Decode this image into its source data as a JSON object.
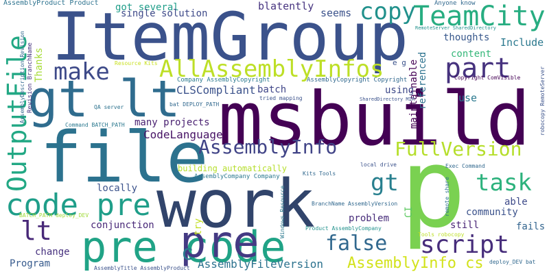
{
  "words": [
    {
      "text": "ItemGroup",
      "color": "#3b528b"
    },
    {
      "text": "msbuild",
      "color": "#440154"
    },
    {
      "text": "file",
      "color": "#2c728e"
    },
    {
      "text": "work",
      "color": "#31446b"
    },
    {
      "text": "p",
      "color": "#7ad151"
    },
    {
      "text": "gt lt",
      "color": "#2f6c8e"
    },
    {
      "text": "pre code",
      "color": "#20a386"
    },
    {
      "text": "pre",
      "color": "#443a83"
    },
    {
      "text": "code pre",
      "color": "#1f9e89"
    },
    {
      "text": "OutputFile",
      "color": "#22a884"
    },
    {
      "text": "AllAssemblyInfos",
      "color": "#bddf26"
    },
    {
      "text": "TeamCity",
      "color": "#27ad81"
    },
    {
      "text": "make",
      "color": "#3e4a89"
    },
    {
      "text": "part",
      "color": "#46327e"
    },
    {
      "text": "copy",
      "color": "#21918c"
    },
    {
      "text": "AssemblyInfo",
      "color": "#414487"
    },
    {
      "text": "FullVersion",
      "color": "#b5de2b"
    },
    {
      "text": "lt",
      "color": "#482878"
    },
    {
      "text": "task",
      "color": "#2db27d"
    },
    {
      "text": "script",
      "color": "#472d7b"
    },
    {
      "text": "false",
      "color": "#31688e"
    },
    {
      "text": "gt",
      "color": "#277f8e"
    },
    {
      "text": "c",
      "color": "#2a788e"
    },
    {
      "text": "AssemblyInfo cs",
      "color": "#d2e21b"
    },
    {
      "text": "AssemblyFileVersion",
      "color": "#2c728e"
    },
    {
      "text": "CodeLanguage",
      "color": "#471365"
    },
    {
      "text": "CLSCompliant",
      "color": "#3b528b"
    },
    {
      "text": "Include",
      "color": "#2a788e"
    },
    {
      "text": "blatently",
      "color": "#46337f"
    },
    {
      "text": "got several",
      "color": "#1f9e89"
    },
    {
      "text": "single solution",
      "color": "#3e4a89"
    },
    {
      "text": "seems",
      "color": "#3b528b"
    },
    {
      "text": "thoughts",
      "color": "#38588c"
    },
    {
      "text": "content",
      "color": "#35b779"
    },
    {
      "text": "maintainable",
      "color": "#440154"
    },
    {
      "text": "referenced",
      "color": "#2c728e"
    },
    {
      "text": "use",
      "color": "#2a788e"
    },
    {
      "text": "batch",
      "color": "#404688"
    },
    {
      "text": "using",
      "color": "#3e4989"
    },
    {
      "text": "many projects",
      "color": "#481f70"
    },
    {
      "text": "building automatically",
      "color": "#b5de2b"
    },
    {
      "text": "locally",
      "color": "#3b528b"
    },
    {
      "text": "conjunction",
      "color": "#482878"
    },
    {
      "text": "problem",
      "color": "#472c7a"
    },
    {
      "text": "community",
      "color": "#3b528b"
    },
    {
      "text": "able",
      "color": "#3e4a89"
    },
    {
      "text": "fails",
      "color": "#32648e"
    },
    {
      "text": "still",
      "color": "#482475"
    },
    {
      "text": "try",
      "color": "#c2df23"
    },
    {
      "text": "change",
      "color": "#46307e"
    },
    {
      "text": "Program",
      "color": "#375b8d"
    },
    {
      "text": "CI",
      "color": "#5ec962"
    },
    {
      "text": "Thanks",
      "color": "#a5db36"
    },
    {
      "text": "Anyone know",
      "color": "#31688e"
    },
    {
      "text": "e g",
      "color": "#3b528b"
    },
    {
      "text": "AssemblyProduct Product",
      "color": "#2c728e"
    },
    {
      "text": "Revision BranchName",
      "color": "#46337f"
    },
    {
      "text": "AssemblyDescription Revision",
      "color": "#31688e"
    },
    {
      "text": "RemoteServer SharedDirectory",
      "color": "#21918c"
    },
    {
      "text": "Resource Kits",
      "color": "#c8e020"
    },
    {
      "text": "Company AssemblyCopyright",
      "color": "#2a788e"
    },
    {
      "text": "AssemblyCopyright Copyright",
      "color": "#31688e"
    },
    {
      "text": "Copyright ComVisible",
      "color": "#440154"
    },
    {
      "text": "QA server",
      "color": "#2c728e"
    },
    {
      "text": "tried mapping",
      "color": "#3b528b"
    },
    {
      "text": "SharedDirectory MIR",
      "color": "#3b528b"
    },
    {
      "text": "bat DEPLOY_PATH",
      "color": "#31688e"
    },
    {
      "text": "Command BATCH_PATH",
      "color": "#2a788e"
    },
    {
      "text": "robocopy RemoteServer",
      "color": "#3b528b"
    },
    {
      "text": "Exec Command",
      "color": "#31688e"
    },
    {
      "text": "local drive",
      "color": "#3b528b"
    },
    {
      "text": "AssemblyCompany Company",
      "color": "#2a788e"
    },
    {
      "text": "Kits Tools",
      "color": "#31688e"
    },
    {
      "text": "BATCH_PATH deploy_DEV",
      "color": "#a0da39"
    },
    {
      "text": "BranchName AssemblyVersion",
      "color": "#31688e"
    },
    {
      "text": "Windows Resource",
      "color": "#2a788e"
    },
    {
      "text": "remote share",
      "color": "#2c728e"
    },
    {
      "text": "Product AssemblyCompany",
      "color": "#21918c"
    },
    {
      "text": "Tools robocopy",
      "color": "#bddf26"
    },
    {
      "text": "deploy_DEV bat",
      "color": "#31688e"
    },
    {
      "text": "AssemblyTitle AssemblyProduct",
      "color": "#3b528b"
    }
  ]
}
